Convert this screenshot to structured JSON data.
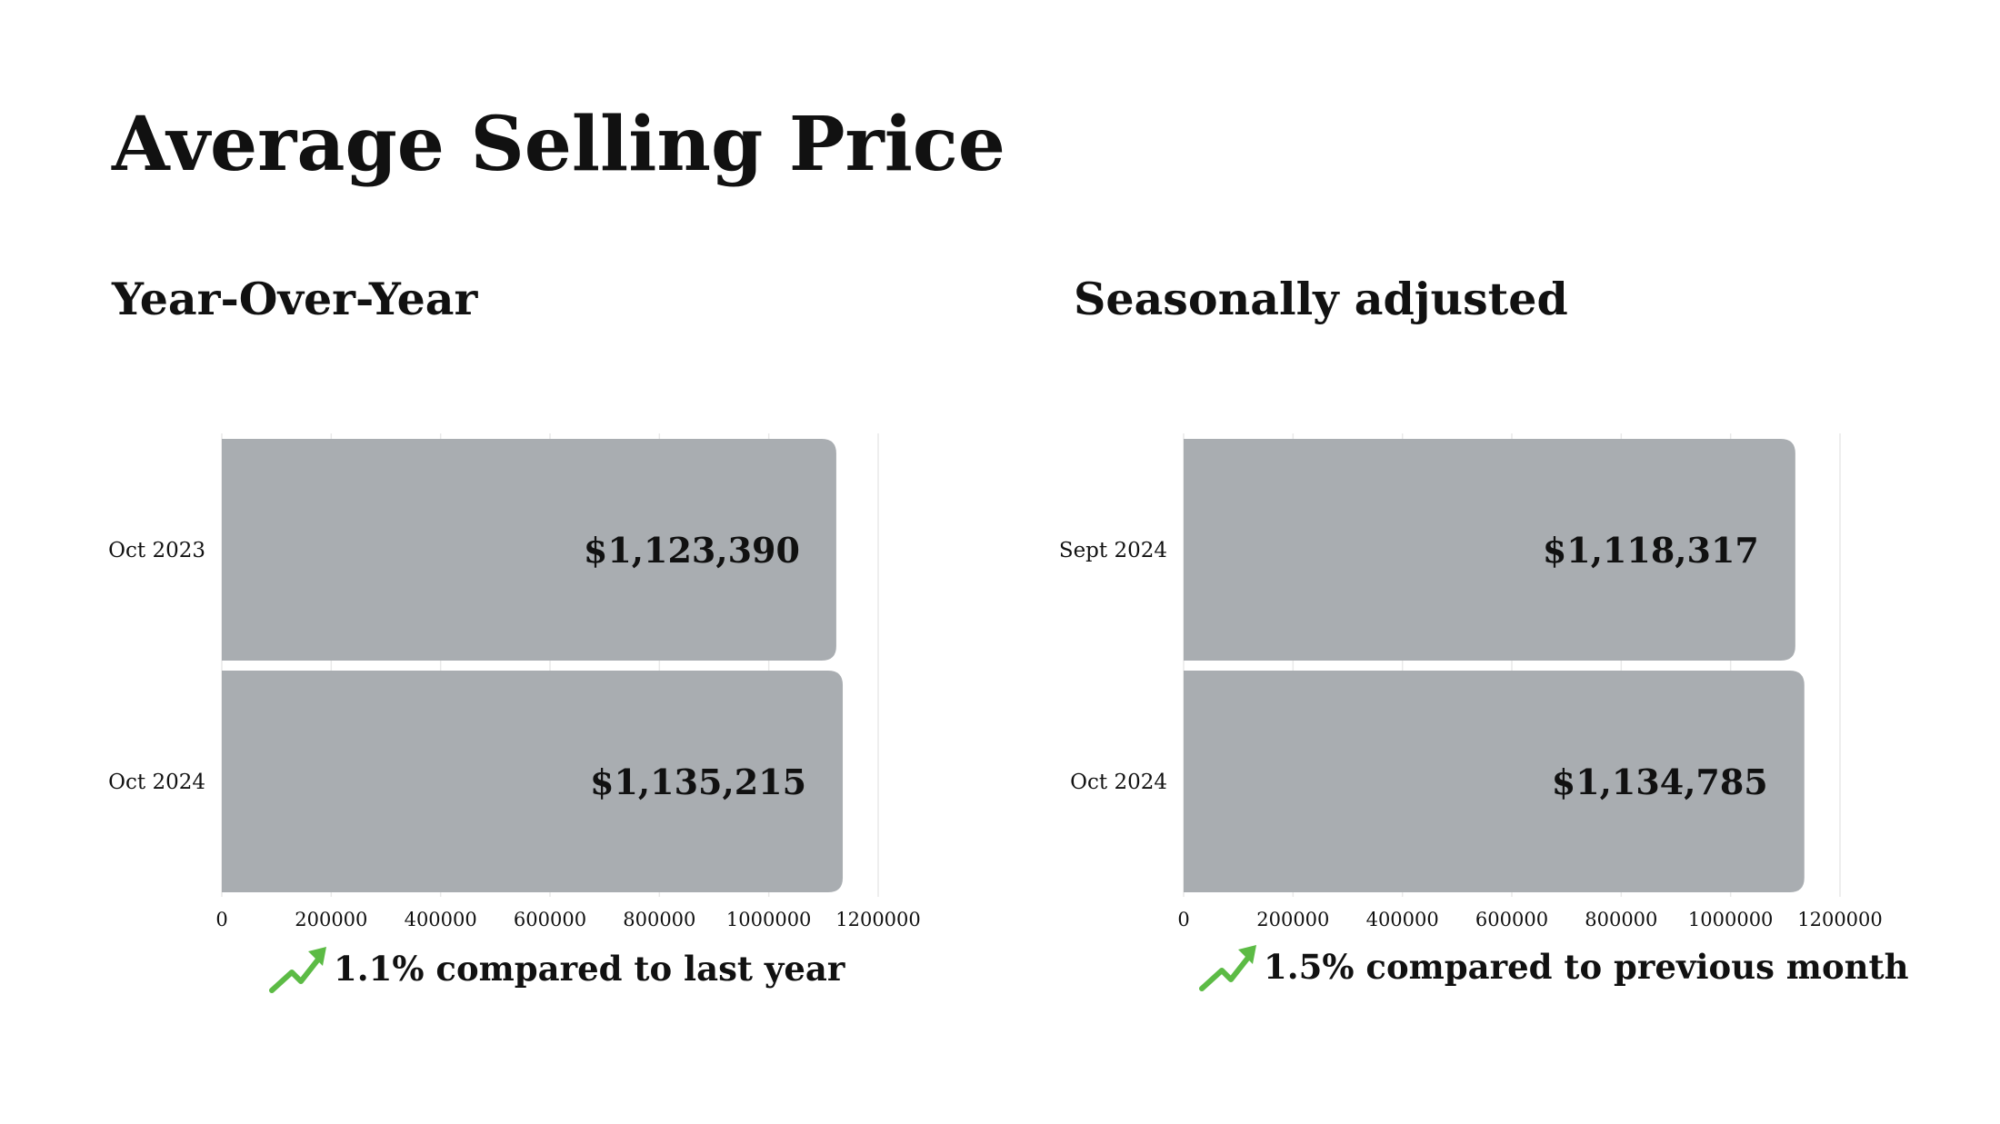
{
  "page": {
    "title": "Average Selling Price"
  },
  "colors": {
    "bar": "#a9adb1",
    "grid": "#e9e9e9",
    "trend_up": "#5cbb45"
  },
  "chart_data": [
    {
      "type": "bar",
      "orientation": "horizontal",
      "title": "Year-Over-Year",
      "categories": [
        "Oct 2023",
        "Oct 2024"
      ],
      "values": [
        1123390,
        1135215
      ],
      "value_labels": [
        "$1,123,390",
        "$1,135,215"
      ],
      "xlim": [
        0,
        1200000
      ],
      "xticks": [
        0,
        200000,
        400000,
        600000,
        800000,
        1000000,
        1200000
      ],
      "xtick_labels": [
        "0",
        "200000",
        "400000",
        "600000",
        "800000",
        "1000000",
        "1200000"
      ],
      "grid": true,
      "note": {
        "icon": "trend-up-icon",
        "text": "1.1% compared to last year"
      }
    },
    {
      "type": "bar",
      "orientation": "horizontal",
      "title": "Seasonally adjusted",
      "categories": [
        "Sept 2024",
        "Oct 2024"
      ],
      "values": [
        1118317,
        1134785
      ],
      "value_labels": [
        "$1,118,317",
        "$1,134,785"
      ],
      "xlim": [
        0,
        1200000
      ],
      "xticks": [
        0,
        200000,
        400000,
        600000,
        800000,
        1000000,
        1200000
      ],
      "xtick_labels": [
        "0",
        "200000",
        "400000",
        "600000",
        "800000",
        "1000000",
        "1200000"
      ],
      "grid": true,
      "note": {
        "icon": "trend-up-icon",
        "text": "1.5% compared to previous month"
      }
    }
  ]
}
